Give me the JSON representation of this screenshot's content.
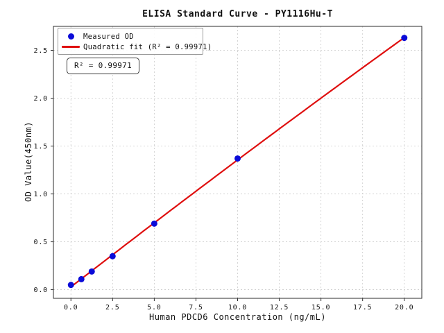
{
  "chart_data": {
    "type": "scatter",
    "title": "ELISA Standard Curve - PY1116Hu-T",
    "xlabel": "Human PDCD6 Concentration (ng/mL)",
    "ylabel": "OD Value(450nm)",
    "xlim": [
      -1.05,
      21.05
    ],
    "ylim": [
      -0.09,
      2.75
    ],
    "x_tick_labels": [
      "0.0",
      "2.5",
      "5.0",
      "7.5",
      "10.0",
      "12.5",
      "15.0",
      "17.5",
      "20.0"
    ],
    "x_tick_values": [
      0,
      2.5,
      5,
      7.5,
      10,
      12.5,
      15,
      17.5,
      20
    ],
    "y_tick_labels": [
      "0.0",
      "0.5",
      "1.0",
      "1.5",
      "2.0",
      "2.5"
    ],
    "y_tick_values": [
      0,
      0.5,
      1,
      1.5,
      2,
      2.5
    ],
    "grid": true,
    "grid_style": "dashed",
    "legend_position": "upper left",
    "series": [
      {
        "name": "Measured OD",
        "kind": "scatter",
        "color": "#0b0bd8",
        "x": [
          0,
          0.625,
          1.25,
          2.5,
          5,
          10,
          20
        ],
        "y": [
          0.05,
          0.11,
          0.19,
          0.35,
          0.69,
          1.37,
          2.63
        ]
      },
      {
        "name": "Quadratic fit (R² = 0.99971)",
        "kind": "quadratic-fit",
        "color": "#df0f0f",
        "r_squared": 0.99971
      }
    ],
    "annotation": "R² = 0.99971",
    "colors": {
      "frame": "#2b2b2b",
      "grid": "#c9c9c9",
      "tick": "#2b2b2b",
      "background": "#ffffff"
    }
  }
}
